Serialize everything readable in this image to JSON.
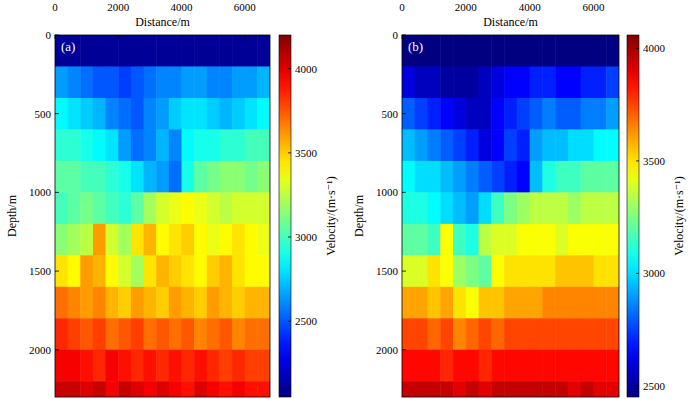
{
  "chart_data": [
    {
      "type": "heatmap",
      "title": "(a)",
      "x_label": "Distance/m",
      "y_label": "Depth/m",
      "xlim": [
        0,
        6800
      ],
      "ylim": [
        0,
        2300
      ],
      "xticks": [
        0,
        2000,
        4000,
        6000
      ],
      "yticks": [
        0,
        500,
        1000,
        1500,
        2000
      ],
      "x": [
        200,
        600,
        1000,
        1400,
        1800,
        2200,
        2600,
        3000,
        3400,
        3800,
        4200,
        4600,
        5000,
        5400,
        5800,
        6200,
        6600
      ],
      "y": [
        100,
        300,
        500,
        700,
        900,
        1100,
        1300,
        1500,
        1700,
        1900,
        2100,
        2300
      ],
      "values": [
        [
          2100,
          2100,
          2100,
          2100,
          2100,
          2100,
          2100,
          2100,
          2100,
          2100,
          2100,
          2100,
          2100,
          2100,
          2100,
          2100,
          2100
        ],
        [
          2650,
          2600,
          2550,
          2500,
          2500,
          2450,
          2500,
          2550,
          2600,
          2600,
          2650,
          2650,
          2600,
          2600,
          2650,
          2650,
          2700
        ],
        [
          2850,
          2800,
          2750,
          2700,
          2600,
          2550,
          2500,
          2600,
          2650,
          2750,
          2800,
          2800,
          2750,
          2700,
          2750,
          2800,
          2850
        ],
        [
          2950,
          2950,
          2900,
          2850,
          2800,
          2650,
          2550,
          2600,
          2700,
          2600,
          2850,
          2900,
          2900,
          2950,
          2950,
          3000,
          3000
        ],
        [
          3050,
          3050,
          3000,
          3000,
          2950,
          2900,
          2800,
          2700,
          2650,
          2550,
          2900,
          3050,
          3100,
          3150,
          3150,
          3100,
          3150
        ],
        [
          3000,
          3050,
          3100,
          3050,
          3000,
          2950,
          3050,
          3200,
          3300,
          3350,
          3400,
          3350,
          3300,
          3250,
          3300,
          3300,
          3300
        ],
        [
          3150,
          3200,
          3250,
          3600,
          3300,
          3200,
          3450,
          3550,
          3400,
          3450,
          3500,
          3400,
          3350,
          3400,
          3450,
          3400,
          3350
        ],
        [
          3450,
          3400,
          3600,
          3550,
          3400,
          3300,
          3200,
          3450,
          3550,
          3500,
          3450,
          3400,
          3500,
          3550,
          3450,
          3400,
          3400
        ],
        [
          3700,
          3650,
          3600,
          3650,
          3550,
          3500,
          3600,
          3550,
          3500,
          3600,
          3550,
          3500,
          3600,
          3550,
          3500,
          3550,
          3550
        ],
        [
          3850,
          3800,
          3750,
          3800,
          3700,
          3750,
          3800,
          3700,
          3750,
          3700,
          3750,
          3650,
          3700,
          3750,
          3650,
          3700,
          3700
        ],
        [
          3950,
          3950,
          3900,
          3850,
          3950,
          3900,
          3850,
          3900,
          3850,
          3900,
          3850,
          3900,
          3850,
          3800,
          3850,
          3800,
          3800
        ],
        [
          4050,
          4050,
          4000,
          4050,
          3950,
          4050,
          4000,
          3950,
          4000,
          3950,
          3900,
          4000,
          3950,
          3900,
          3950,
          3900,
          3900
        ]
      ],
      "colorbar_label": "Velocity/(m·s⁻¹)",
      "colorbar_range": [
        2050,
        4200
      ],
      "colorbar_ticks": [
        2500,
        3000,
        3500,
        4000
      ]
    },
    {
      "type": "heatmap",
      "title": "(b)",
      "x_label": "Distance/m",
      "y_label": "Depth/m",
      "xlim": [
        0,
        6800
      ],
      "ylim": [
        0,
        2300
      ],
      "xticks": [
        0,
        2000,
        4000,
        6000
      ],
      "yticks": [
        0,
        500,
        1000,
        1500,
        2000
      ],
      "x": [
        200,
        600,
        1000,
        1400,
        1800,
        2200,
        2600,
        3000,
        3400,
        3800,
        4200,
        4600,
        5000,
        5400,
        5800,
        6200,
        6600
      ],
      "y": [
        100,
        300,
        500,
        700,
        900,
        1100,
        1300,
        1500,
        1700,
        1900,
        2100,
        2300
      ],
      "values": [
        [
          2450,
          2450,
          2450,
          2450,
          2450,
          2450,
          2450,
          2450,
          2450,
          2450,
          2450,
          2450,
          2450,
          2450,
          2450,
          2450,
          2450
        ],
        [
          2600,
          2550,
          2550,
          2500,
          2500,
          2500,
          2550,
          2600,
          2650,
          2650,
          2700,
          2700,
          2650,
          2650,
          2700,
          2700,
          2750
        ],
        [
          2800,
          2750,
          2700,
          2650,
          2600,
          2550,
          2550,
          2650,
          2700,
          2750,
          2800,
          2850,
          2800,
          2800,
          2850,
          2850,
          2900
        ],
        [
          2950,
          2900,
          2850,
          2800,
          2750,
          2700,
          2600,
          2650,
          2750,
          2700,
          2900,
          2950,
          2950,
          3000,
          3000,
          3050,
          3050
        ],
        [
          3050,
          3000,
          3000,
          2950,
          2900,
          2850,
          2800,
          2750,
          2700,
          2650,
          2950,
          3100,
          3150,
          3150,
          3200,
          3200,
          3200
        ],
        [
          3100,
          3100,
          3050,
          3000,
          2950,
          2900,
          3000,
          3150,
          3250,
          3300,
          3350,
          3350,
          3350,
          3300,
          3350,
          3350,
          3350
        ],
        [
          3200,
          3200,
          3150,
          3450,
          3150,
          3100,
          3350,
          3400,
          3400,
          3450,
          3450,
          3450,
          3400,
          3450,
          3450,
          3450,
          3450
        ],
        [
          3400,
          3400,
          3500,
          3450,
          3300,
          3250,
          3200,
          3450,
          3500,
          3500,
          3500,
          3500,
          3550,
          3550,
          3550,
          3500,
          3500
        ],
        [
          3600,
          3600,
          3550,
          3600,
          3500,
          3450,
          3550,
          3550,
          3600,
          3600,
          3600,
          3650,
          3650,
          3650,
          3650,
          3650,
          3650
        ],
        [
          3750,
          3750,
          3700,
          3750,
          3650,
          3700,
          3750,
          3700,
          3750,
          3750,
          3750,
          3750,
          3750,
          3750,
          3750,
          3750,
          3750
        ],
        [
          3850,
          3850,
          3850,
          3800,
          3850,
          3850,
          3800,
          3850,
          3850,
          3850,
          3850,
          3850,
          3850,
          3850,
          3850,
          3850,
          3850
        ],
        [
          3950,
          3950,
          3950,
          3950,
          3900,
          3950,
          3900,
          3950,
          3950,
          3950,
          3950,
          3950,
          3950,
          3900,
          3950,
          3900,
          3900
        ]
      ],
      "colorbar_label": "Velocity/(m·s⁻¹)",
      "colorbar_range": [
        2450,
        4060
      ],
      "colorbar_ticks": [
        2500,
        3000,
        3500,
        4000
      ]
    }
  ]
}
